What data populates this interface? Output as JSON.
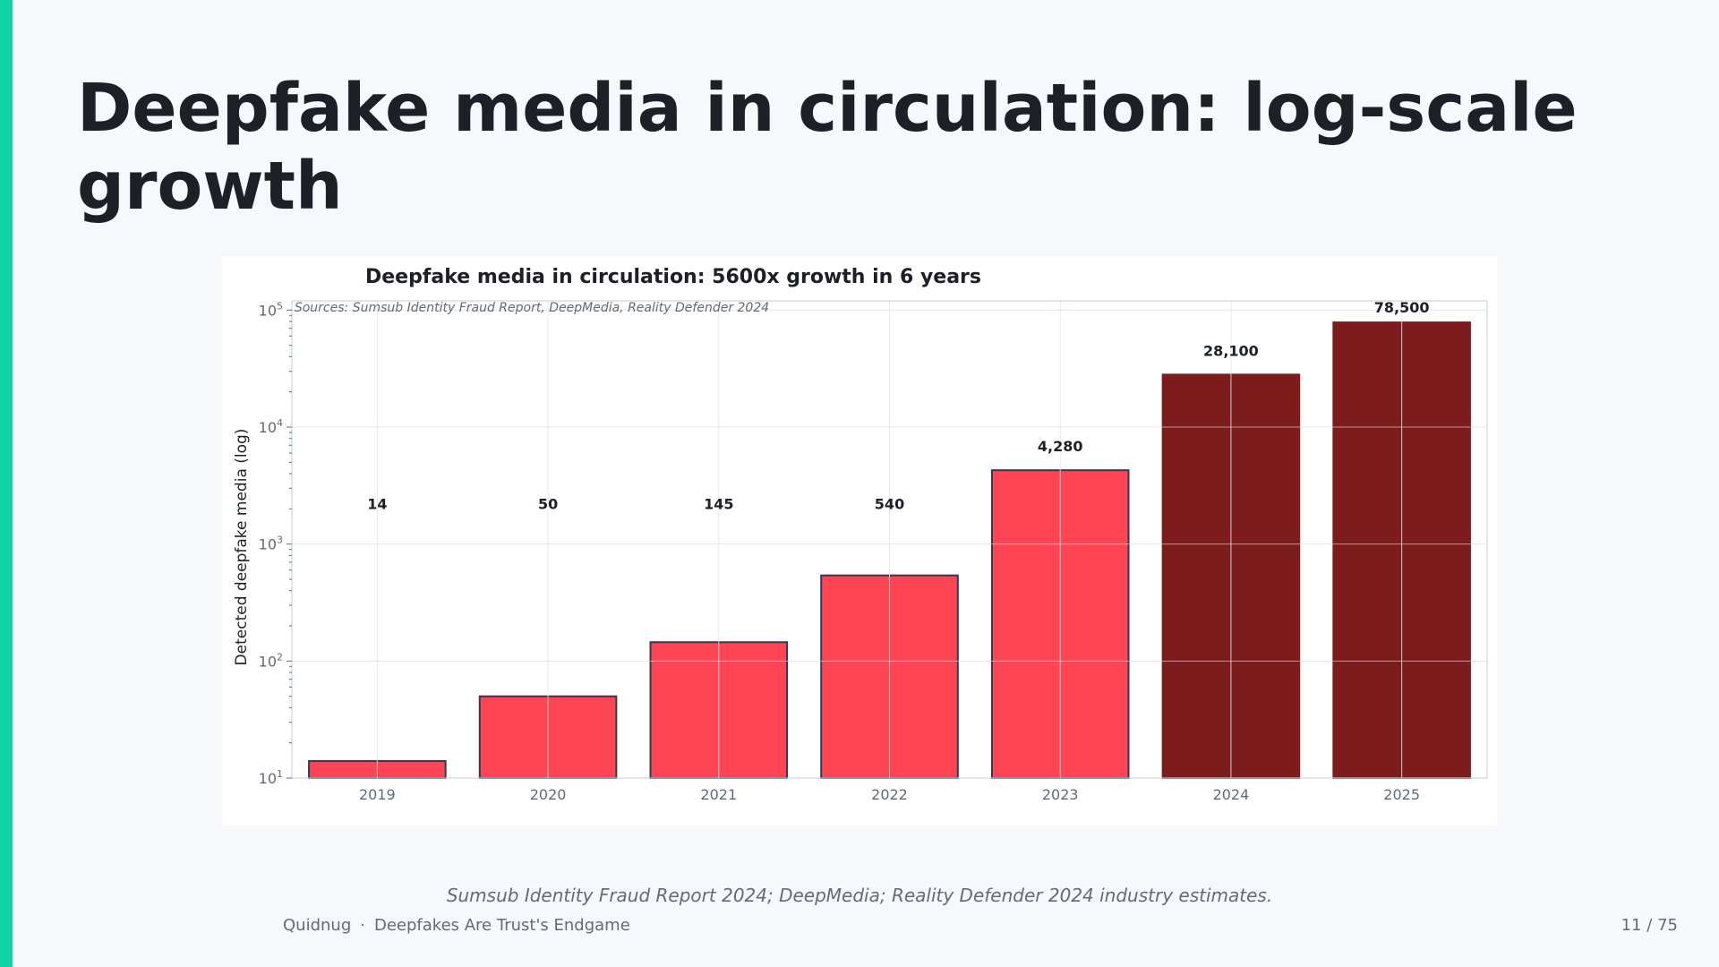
{
  "slide": {
    "title": "Deepfake media in circulation: log-scale growth",
    "caption": "Sumsub Identity Fraud Report 2024; DeepMedia; Reality Defender 2024 industry estimates.",
    "footer_brand": "Quidnug",
    "footer_separator": "·",
    "footer_deck": "Deepfakes Are Trust's Endgame",
    "page_indicator": "11 / 75",
    "accent_color": "#10d4a4"
  },
  "chart_data": {
    "type": "bar",
    "title": "Deepfake media in circulation: 5600x growth in 6 years",
    "subtitle": "Sources: Sumsub Identity Fraud Report, DeepMedia, Reality Defender 2024",
    "xlabel": "",
    "ylabel": "Detected deepfake media (log)",
    "yscale": "log",
    "ylim": [
      10,
      120000
    ],
    "yticks": [
      {
        "value": 10,
        "base": "10",
        "exp": "1"
      },
      {
        "value": 100,
        "base": "10",
        "exp": "2"
      },
      {
        "value": 1000,
        "base": "10",
        "exp": "3"
      },
      {
        "value": 10000,
        "base": "10",
        "exp": "4"
      },
      {
        "value": 100000,
        "base": "10",
        "exp": "5"
      }
    ],
    "grid": true,
    "categories": [
      "2019",
      "2020",
      "2021",
      "2022",
      "2023",
      "2024",
      "2025"
    ],
    "values": [
      14,
      50,
      145,
      540,
      4280,
      28100,
      78500
    ],
    "data_labels": [
      "14",
      "50",
      "145",
      "540",
      "4,280",
      "28,100",
      "78,500"
    ],
    "bar_colors": [
      "#ff4554",
      "#ff4554",
      "#ff4554",
      "#ff4554",
      "#ff4554",
      "#7d1c1c",
      "#7d1c1c"
    ],
    "bar_edge_color": "#2c3a55"
  }
}
